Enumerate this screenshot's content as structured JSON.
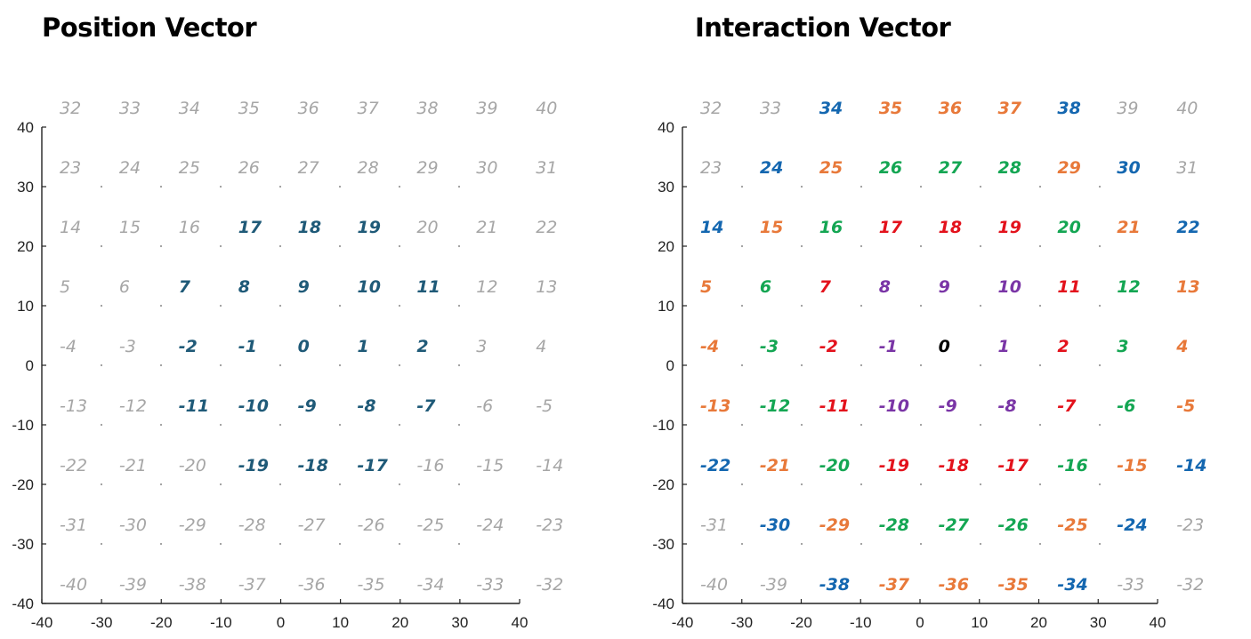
{
  "panels": [
    {
      "title": "Position Vector",
      "x_ticks": [
        "-40",
        "-30",
        "-20",
        "-10",
        "0",
        "10",
        "20",
        "30",
        "40"
      ],
      "y_ticks": [
        "40",
        "30",
        "20",
        "10",
        "0",
        "-10",
        "-20",
        "-30",
        "-40"
      ],
      "rows": [
        [
          "32",
          "33",
          "34",
          "35",
          "36",
          "37",
          "38",
          "39",
          "40"
        ],
        [
          "23",
          "24",
          "25",
          "26",
          "27",
          "28",
          "29",
          "30",
          "31"
        ],
        [
          "14",
          "15",
          "16",
          "17",
          "18",
          "19",
          "20",
          "21",
          "22"
        ],
        [
          "5",
          "6",
          "7",
          "8",
          "9",
          "10",
          "11",
          "12",
          "13"
        ],
        [
          "-4",
          "-3",
          "-2",
          "-1",
          "0",
          "1",
          "2",
          "3",
          "4"
        ],
        [
          "-13",
          "-12",
          "-11",
          "-10",
          "-9",
          "-8",
          "-7",
          "-6",
          "-5"
        ],
        [
          "-22",
          "-21",
          "-20",
          "-19",
          "-18",
          "-17",
          "-16",
          "-15",
          "-14"
        ],
        [
          "-31",
          "-30",
          "-29",
          "-28",
          "-27",
          "-26",
          "-25",
          "-24",
          "-23"
        ],
        [
          "-40",
          "-39",
          "-38",
          "-37",
          "-36",
          "-35",
          "-34",
          "-33",
          "-32"
        ]
      ],
      "colors": [
        [
          "gray",
          "gray",
          "gray",
          "gray",
          "gray",
          "gray",
          "gray",
          "gray",
          "gray"
        ],
        [
          "gray",
          "gray",
          "gray",
          "gray",
          "gray",
          "gray",
          "gray",
          "gray",
          "gray"
        ],
        [
          "gray",
          "gray",
          "gray",
          "teal",
          "teal",
          "teal",
          "gray",
          "gray",
          "gray"
        ],
        [
          "gray",
          "gray",
          "teal",
          "teal",
          "teal",
          "teal",
          "teal",
          "gray",
          "gray"
        ],
        [
          "gray",
          "gray",
          "teal",
          "teal",
          "teal",
          "teal",
          "teal",
          "gray",
          "gray"
        ],
        [
          "gray",
          "gray",
          "teal",
          "teal",
          "teal",
          "teal",
          "teal",
          "gray",
          "gray"
        ],
        [
          "gray",
          "gray",
          "gray",
          "teal",
          "teal",
          "teal",
          "gray",
          "gray",
          "gray"
        ],
        [
          "gray",
          "gray",
          "gray",
          "gray",
          "gray",
          "gray",
          "gray",
          "gray",
          "gray"
        ],
        [
          "gray",
          "gray",
          "gray",
          "gray",
          "gray",
          "gray",
          "gray",
          "gray",
          "gray"
        ]
      ]
    },
    {
      "title": "Interaction Vector",
      "x_ticks": [
        "-40",
        "-30",
        "-20",
        "-10",
        "0",
        "10",
        "20",
        "30",
        "40"
      ],
      "y_ticks": [
        "40",
        "30",
        "20",
        "10",
        "0",
        "-10",
        "-20",
        "-30",
        "-40"
      ],
      "rows": [
        [
          "32",
          "33",
          "34",
          "35",
          "36",
          "37",
          "38",
          "39",
          "40"
        ],
        [
          "23",
          "24",
          "25",
          "26",
          "27",
          "28",
          "29",
          "30",
          "31"
        ],
        [
          "14",
          "15",
          "16",
          "17",
          "18",
          "19",
          "20",
          "21",
          "22"
        ],
        [
          "5",
          "6",
          "7",
          "8",
          "9",
          "10",
          "11",
          "12",
          "13"
        ],
        [
          "-4",
          "-3",
          "-2",
          "-1",
          "0",
          "1",
          "2",
          "3",
          "4"
        ],
        [
          "-13",
          "-12",
          "-11",
          "-10",
          "-9",
          "-8",
          "-7",
          "-6",
          "-5"
        ],
        [
          "-22",
          "-21",
          "-20",
          "-19",
          "-18",
          "-17",
          "-16",
          "-15",
          "-14"
        ],
        [
          "-31",
          "-30",
          "-29",
          "-28",
          "-27",
          "-26",
          "-25",
          "-24",
          "-23"
        ],
        [
          "-40",
          "-39",
          "-38",
          "-37",
          "-36",
          "-35",
          "-34",
          "-33",
          "-32"
        ]
      ],
      "colors": [
        [
          "gray",
          "gray",
          "blue",
          "orange",
          "orange",
          "orange",
          "blue",
          "gray",
          "gray"
        ],
        [
          "gray",
          "blue",
          "orange",
          "green",
          "green",
          "green",
          "orange",
          "blue",
          "gray"
        ],
        [
          "blue",
          "orange",
          "green",
          "red",
          "red",
          "red",
          "green",
          "orange",
          "blue"
        ],
        [
          "orange",
          "green",
          "red",
          "purple",
          "purple",
          "purple",
          "red",
          "green",
          "orange"
        ],
        [
          "orange",
          "green",
          "red",
          "purple",
          "black",
          "purple",
          "red",
          "green",
          "orange"
        ],
        [
          "orange",
          "green",
          "red",
          "purple",
          "purple",
          "purple",
          "red",
          "green",
          "orange"
        ],
        [
          "blue",
          "orange",
          "green",
          "red",
          "red",
          "red",
          "green",
          "orange",
          "blue"
        ],
        [
          "gray",
          "blue",
          "orange",
          "green",
          "green",
          "green",
          "orange",
          "blue",
          "gray"
        ],
        [
          "gray",
          "gray",
          "blue",
          "orange",
          "orange",
          "orange",
          "blue",
          "gray",
          "gray"
        ]
      ]
    }
  ],
  "palette": {
    "gray": "#a6a6a6",
    "teal": "#1f5a78",
    "blue": "#1467b0",
    "orange": "#e8793a",
    "green": "#14a653",
    "red": "#e3121c",
    "purple": "#7a35a6",
    "black": "#000000"
  }
}
